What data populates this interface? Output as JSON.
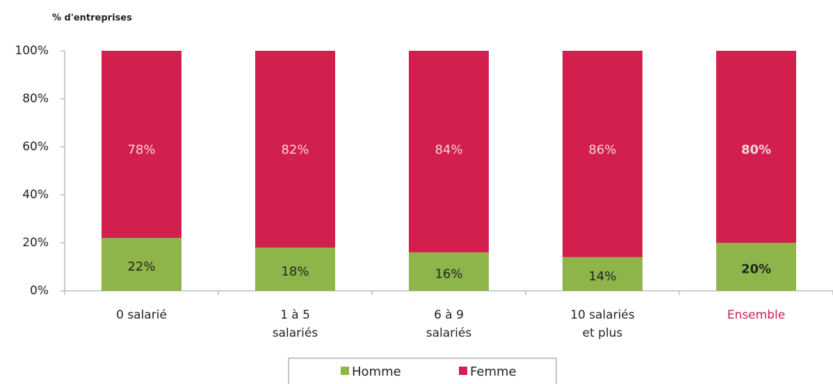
{
  "chart_data": {
    "type": "stacked_bar",
    "y_label": "% d'entreprises",
    "categories": [
      "0 salarié",
      "1 à 5 salariés",
      "6 à 9 salariés",
      "10 salariés et plus",
      "Ensemble"
    ],
    "series": [
      {
        "name": "Homme",
        "color": "#8db54a",
        "values": [
          22,
          18,
          16,
          14,
          20
        ],
        "value_labels": [
          "22%",
          "18%",
          "16%",
          "14%",
          "20%"
        ]
      },
      {
        "name": "Femme",
        "color": "#d21f4e",
        "values": [
          78,
          82,
          84,
          86,
          80
        ],
        "value_labels": [
          "78%",
          "82%",
          "84%",
          "86%",
          "80%"
        ]
      }
    ],
    "ylim": [
      0,
      100
    ],
    "yticks": [
      {
        "value": 0,
        "label": "0%"
      },
      {
        "value": 20,
        "label": "20%"
      },
      {
        "value": 40,
        "label": "40%"
      },
      {
        "value": 60,
        "label": "60%"
      },
      {
        "value": 80,
        "label": "80%"
      },
      {
        "value": 100,
        "label": "100%"
      }
    ],
    "legend": "bottom"
  }
}
